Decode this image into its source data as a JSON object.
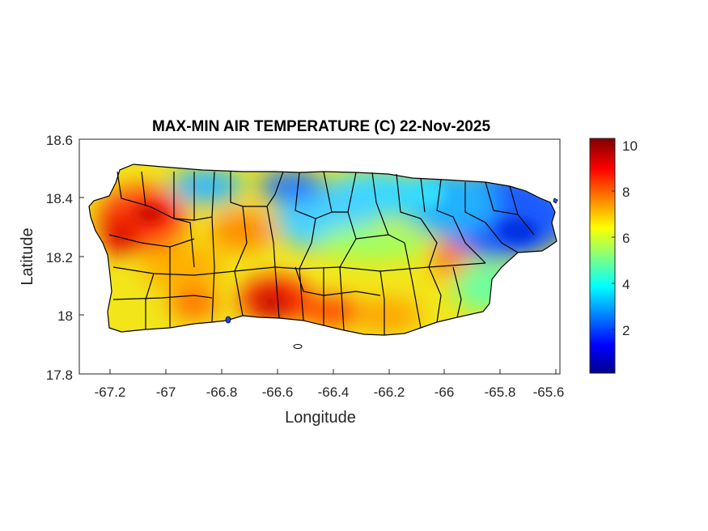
{
  "map": {
    "title": "MAX-MIN AIR TEMPERATURE (C) 22-Nov-2025",
    "xlabel": "Longitude",
    "ylabel": "Latitude",
    "xlim": [
      -67.3,
      -65.58
    ],
    "ylim": [
      17.8,
      18.6
    ],
    "x_ticks": [
      "-67.2",
      "-67",
      "-66.8",
      "-66.6",
      "-66.4",
      "-66.2",
      "-66",
      "-65.8",
      "-65.6"
    ],
    "y_ticks": [
      "18.6",
      "18.4",
      "18.2",
      "18",
      "17.8"
    ],
    "colorbar": {
      "colormap": "jet",
      "range": [
        0,
        10.4
      ],
      "ticks": [
        "10",
        "8",
        "6",
        "4",
        "2"
      ]
    },
    "colors": {
      "axis": "#262626",
      "boundary": "#000000"
    }
  }
}
